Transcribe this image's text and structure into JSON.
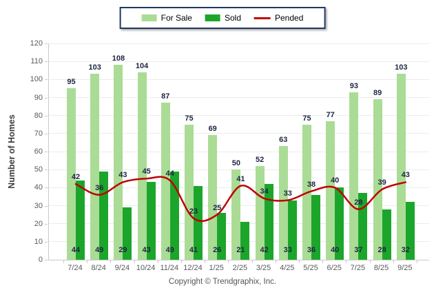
{
  "legend": {
    "items": [
      {
        "label": "For Sale",
        "swatch": "bar",
        "color": "#AADC96"
      },
      {
        "label": "Sold",
        "swatch": "bar",
        "color": "#1BA62B"
      },
      {
        "label": "Pended",
        "swatch": "line",
        "color": "#C00000"
      }
    ]
  },
  "chart_data": {
    "type": "bar",
    "title": "",
    "categories": [
      "7/24",
      "8/24",
      "9/24",
      "10/24",
      "11/24",
      "12/24",
      "1/25",
      "2/25",
      "3/25",
      "4/25",
      "5/25",
      "6/25",
      "7/25",
      "8/25",
      "9/25"
    ],
    "series": [
      {
        "name": "For Sale",
        "type": "bar",
        "color": "#AADC96",
        "values": [
          95,
          103,
          108,
          104,
          87,
          75,
          69,
          50,
          52,
          63,
          75,
          77,
          93,
          89,
          103
        ]
      },
      {
        "name": "Sold",
        "type": "bar",
        "color": "#1BA62B",
        "values": [
          44,
          49,
          29,
          43,
          49,
          41,
          26,
          21,
          42,
          33,
          36,
          40,
          37,
          28,
          32
        ]
      },
      {
        "name": "Pended",
        "type": "line",
        "color": "#C00000",
        "values": [
          42,
          36,
          43,
          45,
          44,
          23,
          25,
          41,
          34,
          33,
          38,
          40,
          28,
          39,
          43
        ]
      }
    ],
    "xlabel": "",
    "ylabel": "Number of Homes",
    "ylim": [
      0,
      120
    ],
    "ytick_step": 10,
    "grid": true,
    "legend_position": "top"
  },
  "footer": {
    "copyright": "Copyright © Trendgraphix, Inc."
  }
}
